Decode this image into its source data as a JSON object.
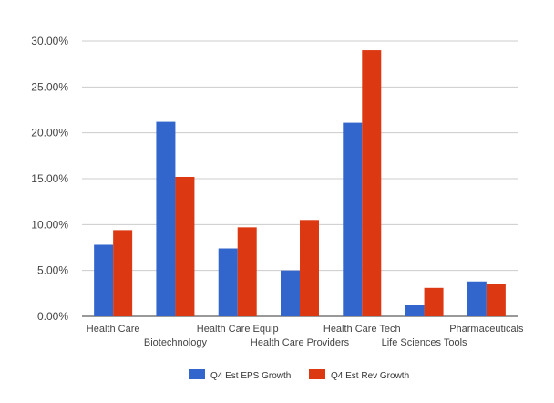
{
  "chart_data": {
    "type": "bar",
    "categories": [
      "Health Care",
      "Biotechnology",
      "Health Care Equip",
      "Health Care Providers",
      "Health Care Tech",
      "Life Sciences Tools",
      "Pharmaceuticals"
    ],
    "series": [
      {
        "name": "Q4 Est EPS Growth",
        "color": "#3366cc",
        "values": [
          7.8,
          21.2,
          7.4,
          5.0,
          21.1,
          1.2,
          3.8
        ]
      },
      {
        "name": "Q4 Est Rev Growth",
        "color": "#dc3912",
        "values": [
          9.4,
          15.2,
          9.7,
          10.5,
          29.0,
          3.1,
          3.5
        ]
      }
    ],
    "ylim": [
      0,
      30
    ],
    "yticks": [
      0,
      5,
      10,
      15,
      20,
      25,
      30
    ],
    "ytick_labels": [
      "0.00%",
      "5.00%",
      "10.00%",
      "15.00%",
      "20.00%",
      "25.00%",
      "30.00%"
    ],
    "grid": true,
    "legend_position": "bottom"
  }
}
